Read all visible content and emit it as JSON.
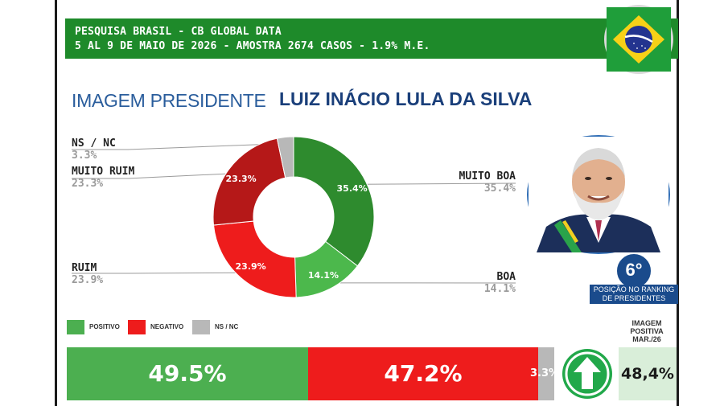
{
  "header": {
    "line1": "PESQUISA BRASIL - CB GLOBAL DATA",
    "line2": "5 AL 9 DE MAIO DE 2026 - AMOSTRA 2674 CASOS - 1.9% M.E."
  },
  "title": {
    "prefix": "IMAGEM PRESIDENTE",
    "name": "LUIZ INÁCIO LULA DA SILVA"
  },
  "chart_data": [
    {
      "type": "pie",
      "variant": "donut",
      "categories": [
        "MUITO BOA",
        "BOA",
        "RUIM",
        "MUITO RUIM",
        "NS / NC"
      ],
      "values": [
        35.4,
        14.1,
        23.9,
        23.3,
        3.3
      ],
      "slice_labels": [
        "35.4%",
        "14.1%",
        "23.9%",
        "23.3%",
        ""
      ],
      "outside_values": [
        "35.4%",
        "14.1%",
        "23.9%",
        "23.3%",
        "3.3%"
      ],
      "colors": [
        "#2e8b2e",
        "#4cb84c",
        "#ee1c1c",
        "#b51818",
        "#b8b8b8"
      ]
    },
    {
      "type": "bar",
      "orientation": "horizontal-stacked",
      "categories": [
        "POSITIVO",
        "NEGATIVO",
        "NS / NC"
      ],
      "values": [
        49.5,
        47.2,
        3.3
      ],
      "value_labels": [
        "49.5%",
        "47.2%",
        "3.3%"
      ],
      "colors": [
        "#4caf50",
        "#ee1c1c",
        "#b8b8b8"
      ]
    }
  ],
  "legend": {
    "positivo": "POSITIVO",
    "negativo": "NEGATIVO",
    "nsnc": "NS / NC"
  },
  "ranking": {
    "position": "6°",
    "text_line1": "POSIÇÃO NO RANKING",
    "text_line2": "DE PRESIDENTES"
  },
  "imagem_positiva": {
    "title_line1": "IMAGEM",
    "title_line2": "POSITIVA",
    "title_line3": "MAR./26",
    "value": "48,4%",
    "trend": "up"
  },
  "colors": {
    "header_green": "#1e8a2a",
    "title_blue": "#2a5d9c",
    "name_blue": "#1a3f7a",
    "badge_blue": "#1a4b8c"
  },
  "icons": {
    "flag": "brazil-flag-icon",
    "arrow": "arrow-up-icon",
    "photo": "president-portrait"
  }
}
